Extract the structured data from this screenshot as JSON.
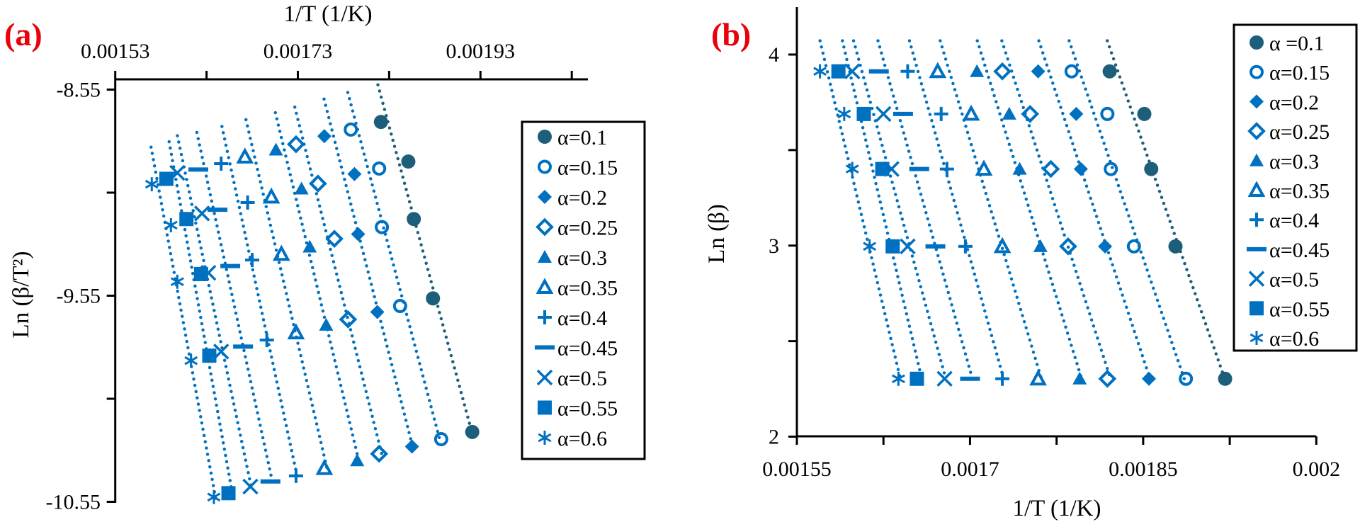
{
  "colors": {
    "dark": "#1d5f7a",
    "blue": "#0070c0",
    "panel_label": "#e8000b"
  },
  "chart_data": [
    {
      "type": "scatter",
      "panel_label": "(a)",
      "title": "",
      "xlabel": "1/T (1/K)",
      "ylabel": "Ln (β/T²)",
      "xlim": [
        0.00153,
        0.00205
      ],
      "ylim": [
        -10.55,
        -8.5
      ],
      "xtick_labels": [
        "0.00153",
        "0.00173",
        "0.00193"
      ],
      "xtick_values": [
        0.00153,
        0.00173,
        0.00193
      ],
      "xminor_ticks": [
        0.00163,
        0.00183,
        0.00203
      ],
      "ytick_labels": [
        "-8.55",
        "-9.55",
        "-10.55"
      ],
      "ytick_values": [
        -8.55,
        -9.55,
        -10.55
      ],
      "yminor_ticks": [
        -9.05,
        -10.05
      ],
      "legend_position": "right",
      "trendlines": "linear, dotted",
      "series": [
        {
          "name": "α=0.1",
          "marker": "circle-filled",
          "x": [
            0.001821,
            0.001851,
            0.001857,
            0.001878,
            0.001921
          ],
          "y": [
            -8.707,
            -8.899,
            -9.178,
            -9.563,
            -10.211
          ]
        },
        {
          "name": "α=0.15",
          "marker": "circle-open",
          "x": [
            0.001788,
            0.001819,
            0.001822,
            0.001842,
            0.001887
          ],
          "y": [
            -8.744,
            -8.933,
            -9.217,
            -9.6,
            -10.246
          ]
        },
        {
          "name": "α=0.2",
          "marker": "diamond-filled",
          "x": [
            0.001759,
            0.001792,
            0.001796,
            0.001817,
            0.001855
          ],
          "y": [
            -8.776,
            -8.96,
            -9.251,
            -9.629,
            -10.282
          ]
        },
        {
          "name": "α=0.25",
          "marker": "diamond-open",
          "x": [
            0.001728,
            0.001752,
            0.00177,
            0.001785,
            0.001819
          ],
          "y": [
            -8.815,
            -9.006,
            -9.274,
            -9.665,
            -10.317
          ]
        },
        {
          "name": "α=0.3",
          "marker": "triangle-filled",
          "x": [
            0.001706,
            0.001734,
            0.001743,
            0.001761,
            0.001795
          ],
          "y": [
            -8.842,
            -9.031,
            -9.313,
            -9.692,
            -10.35
          ]
        },
        {
          "name": "α=0.35",
          "marker": "triangle-open",
          "x": [
            0.001672,
            0.001701,
            0.001712,
            0.001728,
            0.001759
          ],
          "y": [
            -8.876,
            -9.07,
            -9.348,
            -9.729,
            -10.387
          ]
        },
        {
          "name": "α=0.4",
          "marker": "plus",
          "x": [
            0.001646,
            0.001675,
            0.00168,
            0.001696,
            0.001728
          ],
          "y": [
            -8.909,
            -9.098,
            -9.377,
            -9.765,
            -10.424
          ]
        },
        {
          "name": "α=0.45",
          "marker": "dash",
          "x": [
            0.001621,
            0.001642,
            0.001656,
            0.00167,
            0.0017
          ],
          "y": [
            -8.938,
            -9.133,
            -9.406,
            -9.797,
            -10.451
          ]
        },
        {
          "name": "α=0.5",
          "marker": "cross",
          "x": [
            0.001598,
            0.001625,
            0.001632,
            0.001646,
            0.001678
          ],
          "y": [
            -8.954,
            -9.151,
            -9.439,
            -9.821,
            -10.476
          ]
        },
        {
          "name": "α=0.55",
          "marker": "square-filled",
          "x": [
            0.001586,
            0.001608,
            0.001624,
            0.001633,
            0.001654
          ],
          "y": [
            -8.983,
            -9.178,
            -9.445,
            -9.841,
            -10.508
          ]
        },
        {
          "name": "α=0.6",
          "marker": "asterisk",
          "x": [
            0.00157,
            0.001591,
            0.001598,
            0.001613,
            0.001638
          ],
          "y": [
            -9.009,
            -9.208,
            -9.482,
            -9.865,
            -10.527
          ]
        }
      ]
    },
    {
      "type": "scatter",
      "panel_label": "(b)",
      "title": "",
      "xlabel": "1/T (1/K)",
      "ylabel": "Ln (β)",
      "xlim": [
        0.00155,
        0.002
      ],
      "ylim": [
        2,
        4.25
      ],
      "xtick_labels": [
        "0.00155",
        "0.0017",
        "0.00185",
        "0.002"
      ],
      "xtick_values": [
        0.00155,
        0.0017,
        0.00185,
        0.002
      ],
      "xminor_ticks": [
        0.001625,
        0.001775,
        0.001925
      ],
      "ytick_labels": [
        "4",
        "3",
        "2"
      ],
      "ytick_values": [
        4,
        3,
        2
      ],
      "yminor_ticks": [
        3.5,
        2.5
      ],
      "legend_position": "top-right",
      "trendlines": "linear, dotted",
      "series": [
        {
          "name": "α =0.1",
          "marker": "circle-filled",
          "x": [
            0.001821,
            0.001851,
            0.001857,
            0.001878,
            0.001921
          ],
          "y": [
            3.912,
            3.689,
            3.401,
            2.996,
            2.303
          ]
        },
        {
          "name": "α=0.15",
          "marker": "circle-open",
          "x": [
            0.001788,
            0.001819,
            0.001822,
            0.001842,
            0.001887
          ],
          "y": [
            3.912,
            3.689,
            3.401,
            2.996,
            2.303
          ]
        },
        {
          "name": "α=0.2",
          "marker": "diamond-filled",
          "x": [
            0.001759,
            0.001792,
            0.001796,
            0.001817,
            0.001855
          ],
          "y": [
            3.912,
            3.689,
            3.401,
            2.996,
            2.303
          ]
        },
        {
          "name": "α=0.25",
          "marker": "diamond-open",
          "x": [
            0.001728,
            0.001752,
            0.00177,
            0.001785,
            0.001819
          ],
          "y": [
            3.912,
            3.689,
            3.401,
            2.996,
            2.303
          ]
        },
        {
          "name": "α=0.3",
          "marker": "triangle-filled",
          "x": [
            0.001706,
            0.001734,
            0.001743,
            0.001761,
            0.001795
          ],
          "y": [
            3.912,
            3.689,
            3.401,
            2.996,
            2.303
          ]
        },
        {
          "name": "α=0.35",
          "marker": "triangle-open",
          "x": [
            0.001672,
            0.001701,
            0.001712,
            0.001728,
            0.001759
          ],
          "y": [
            3.912,
            3.689,
            3.401,
            2.996,
            2.303
          ]
        },
        {
          "name": "α=0.4",
          "marker": "plus",
          "x": [
            0.001646,
            0.001675,
            0.00168,
            0.001696,
            0.001728
          ],
          "y": [
            3.912,
            3.689,
            3.401,
            2.996,
            2.303
          ]
        },
        {
          "name": "α=0.45",
          "marker": "dash",
          "x": [
            0.001621,
            0.001642,
            0.001656,
            0.00167,
            0.0017
          ],
          "y": [
            3.912,
            3.689,
            3.401,
            2.996,
            2.303
          ]
        },
        {
          "name": "α=0.5",
          "marker": "cross",
          "x": [
            0.001598,
            0.001625,
            0.001632,
            0.001646,
            0.001678
          ],
          "y": [
            3.912,
            3.689,
            3.401,
            2.996,
            2.303
          ]
        },
        {
          "name": "α=0.55",
          "marker": "square-filled",
          "x": [
            0.001586,
            0.001608,
            0.001624,
            0.001633,
            0.001654
          ],
          "y": [
            3.912,
            3.689,
            3.401,
            2.996,
            2.303
          ]
        },
        {
          "name": "α=0.6",
          "marker": "asterisk",
          "x": [
            0.00157,
            0.001591,
            0.001598,
            0.001613,
            0.001638
          ],
          "y": [
            3.912,
            3.689,
            3.401,
            2.996,
            2.303
          ]
        }
      ]
    }
  ]
}
